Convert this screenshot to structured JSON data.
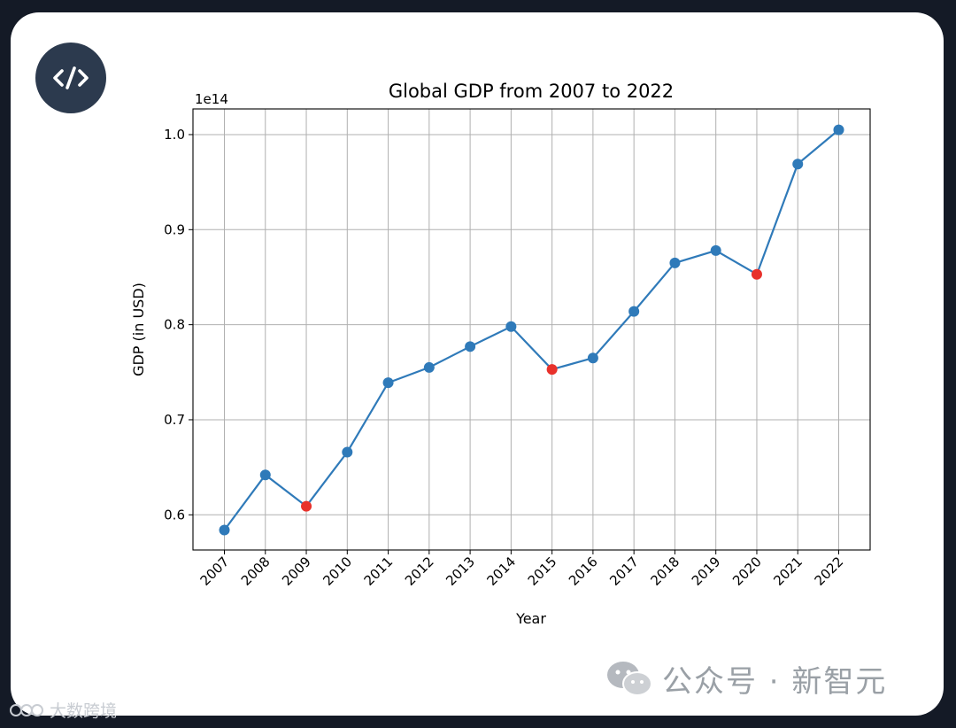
{
  "chart_data": {
    "type": "line",
    "title": "Global GDP from 2007 to 2022",
    "xlabel": "Year",
    "ylabel": "GDP (in USD)",
    "y_offset_label": "1e14",
    "y_scale": 100000000000000.0,
    "ylim": [
      0.563,
      1.027
    ],
    "yticks": [
      0.6,
      0.7,
      0.8,
      0.9,
      1.0
    ],
    "ytick_labels": [
      "0.6",
      "0.7",
      "0.8",
      "0.9",
      "1.0"
    ],
    "grid": true,
    "categories": [
      "2007",
      "2008",
      "2009",
      "2010",
      "2011",
      "2012",
      "2013",
      "2014",
      "2015",
      "2016",
      "2017",
      "2018",
      "2019",
      "2020",
      "2021",
      "2022"
    ],
    "series": [
      {
        "name": "GDP",
        "values": [
          0.584,
          0.642,
          0.609,
          0.666,
          0.739,
          0.755,
          0.777,
          0.798,
          0.753,
          0.765,
          0.814,
          0.865,
          0.878,
          0.853,
          0.969,
          1.005
        ],
        "color": "#2f7ab9"
      }
    ],
    "highlighted": [
      "2009",
      "2015",
      "2020"
    ],
    "highlight_color": "#e8312b"
  },
  "badge": {
    "icon": "code-icon"
  },
  "watermark": {
    "text": "公众号 · 新智元",
    "icon": "wechat-icon"
  },
  "corner_watermark": {
    "text": "大数跨境",
    "icon": "logo-icon"
  }
}
